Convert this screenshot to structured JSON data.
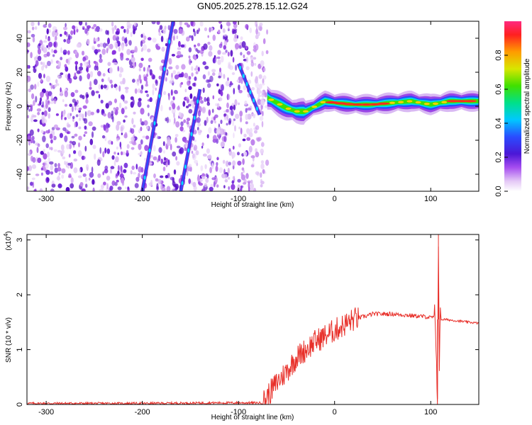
{
  "title": "GN05.2025.278.15.12.G24",
  "chart_data": [
    {
      "type": "heatmap",
      "xlabel": "Height of straight line (km)",
      "ylabel": "Frequency (Hz)",
      "xlim": [
        -320,
        150
      ],
      "ylim": [
        -50,
        50
      ],
      "xticks": [
        -300,
        -200,
        -100,
        0,
        100
      ],
      "yticks": [
        -40,
        -20,
        0,
        20,
        40
      ],
      "colorbar": {
        "label": "Normalized spectral amplitude",
        "range": [
          0,
          1
        ],
        "ticks": [
          0.0,
          0.2,
          0.4,
          0.6,
          0.8
        ]
      },
      "features": {
        "noise_region_x": [
          -320,
          -70
        ],
        "signal_band_x": [
          -70,
          150
        ],
        "signal_band_center_hz": [
          [
            -70,
            5
          ],
          [
            -60,
            2
          ],
          [
            -50,
            -1
          ],
          [
            -40,
            -3
          ],
          [
            -30,
            -3
          ],
          [
            -20,
            0
          ],
          [
            -10,
            3
          ],
          [
            0,
            2
          ],
          [
            20,
            1
          ],
          [
            40,
            1
          ],
          [
            60,
            2
          ],
          [
            80,
            3
          ],
          [
            100,
            1
          ],
          [
            120,
            3
          ],
          [
            150,
            3
          ]
        ],
        "streaks": [
          {
            "x": [
              -200,
              -168
            ],
            "y": [
              -50,
              50
            ]
          },
          {
            "x": [
              -160,
              -140
            ],
            "y": [
              -50,
              10
            ]
          },
          {
            "x": [
              -100,
              -78
            ],
            "y": [
              25,
              -5
            ]
          }
        ]
      }
    },
    {
      "type": "line",
      "xlabel": "Height of straight line (km)",
      "ylabel": "SNR (10 * v/v)",
      "yscale_label": "(x10",
      "yscale_exp": "4",
      "xlim": [
        -320,
        150
      ],
      "ylim": [
        0,
        3.1
      ],
      "xticks": [
        -300,
        -200,
        -100,
        0,
        100
      ],
      "yticks": [
        0,
        1,
        2,
        3
      ],
      "series": [
        {
          "color": "#e8302a",
          "x": [
            -320,
            -200,
            -120,
            -75,
            -70,
            -60,
            -50,
            -40,
            -30,
            -20,
            -10,
            0,
            10,
            20,
            30,
            40,
            60,
            80,
            95,
            100,
            104,
            106,
            107,
            108,
            109,
            110,
            115,
            130,
            150
          ],
          "y": [
            0.02,
            0.02,
            0.03,
            0.03,
            0.15,
            0.4,
            0.6,
            0.85,
            1.0,
            1.15,
            1.25,
            1.35,
            1.45,
            1.55,
            1.6,
            1.65,
            1.65,
            1.62,
            1.6,
            1.58,
            1.6,
            0.9,
            0.1,
            3.1,
            0.7,
            1.55,
            1.55,
            1.52,
            1.48
          ]
        }
      ]
    }
  ]
}
